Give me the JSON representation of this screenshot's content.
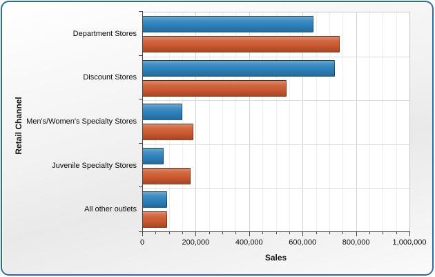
{
  "window": {
    "kind": "chart-panel",
    "frame_border_color": "#2c6aa0"
  },
  "chart_data": {
    "type": "bar",
    "orientation": "horizontal",
    "xlabel": "Sales",
    "ylabel": "Retail Channel",
    "categories": [
      "Department Stores",
      "Discount Stores",
      "Men's/Women's Specialty Stores",
      "Juvenile Specialty Stores",
      "All other outlets"
    ],
    "series": [
      {
        "name": "series-1-blue",
        "color": "#2e82bd",
        "values": [
          640000,
          720000,
          150000,
          80000,
          92000
        ]
      },
      {
        "name": "series-2-orange",
        "color": "#cd5a31",
        "values": [
          740000,
          540000,
          190000,
          180000,
          92000
        ]
      }
    ],
    "xlim": [
      0,
      1000000
    ],
    "x_ticks": [
      {
        "value": 0,
        "label": "0"
      },
      {
        "value": 200000,
        "label": "200,000"
      },
      {
        "value": 400000,
        "label": "400,000"
      },
      {
        "value": 600000,
        "label": "600,000"
      },
      {
        "value": 800000,
        "label": "800,000"
      },
      {
        "value": 1000000,
        "label": "1,000,000"
      }
    ],
    "minor_tick_step": 50000,
    "grid": true,
    "legend_position": "none"
  }
}
